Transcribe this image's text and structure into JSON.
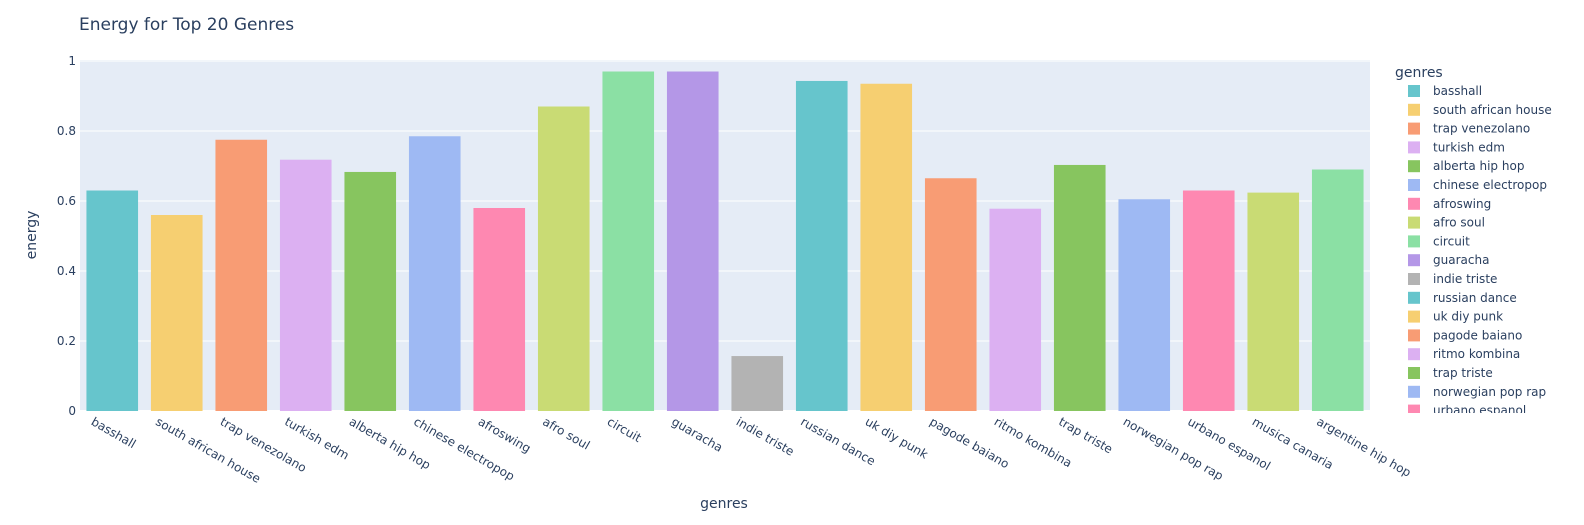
{
  "chart_data": {
    "type": "bar",
    "title": "Energy for Top 20 Genres",
    "xlabel": "genres",
    "ylabel": "energy",
    "ylim": [
      0,
      1.0
    ],
    "yticks": [
      0,
      0.2,
      0.4,
      0.6,
      0.8,
      1
    ],
    "ytick_labels": [
      "0",
      "0.2",
      "0.4",
      "0.6",
      "0.8",
      "1"
    ],
    "grid": true,
    "legend_title": "genres",
    "legend_placement": "right",
    "categories": [
      "basshall",
      "south african house",
      "trap venezolano",
      "turkish edm",
      "alberta hip hop",
      "chinese electropop",
      "afroswing",
      "afro soul",
      "circuit",
      "guaracha",
      "indie triste",
      "russian dance",
      "uk diy punk",
      "pagode baiano",
      "ritmo kombina",
      "trap triste",
      "norwegian pop rap",
      "urbano espanol",
      "musica canaria",
      "argentine hip hop"
    ],
    "values": [
      0.63,
      0.56,
      0.775,
      0.718,
      0.683,
      0.785,
      0.58,
      0.87,
      0.97,
      0.97,
      0.157,
      0.943,
      0.935,
      0.665,
      0.578,
      0.703,
      0.605,
      0.63,
      0.624,
      0.69
    ],
    "colors": [
      "#66c5cc",
      "#f6cf71",
      "#f89c74",
      "#dcb0f2",
      "#87c55f",
      "#9eb9f3",
      "#fe88b1",
      "#c9db74",
      "#8be0a4",
      "#b497e7",
      "#b3b3b3",
      "#66c5cc",
      "#f6cf71",
      "#f89c74",
      "#dcb0f2",
      "#87c55f",
      "#9eb9f3",
      "#fe88b1",
      "#c9db74",
      "#8be0a4"
    ]
  }
}
